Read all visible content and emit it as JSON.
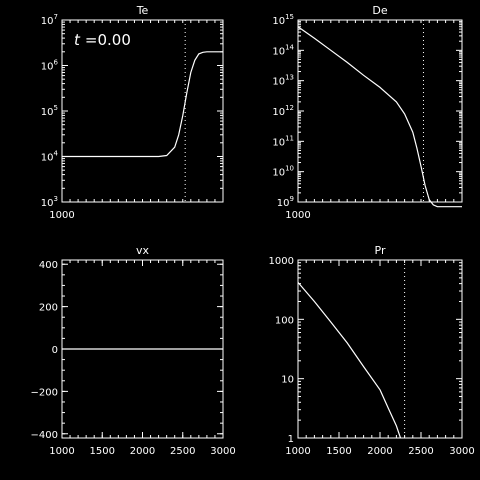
{
  "chart_data": [
    {
      "type": "line",
      "title": "Te",
      "annotation_var": "t",
      "annotation_val": "=0.00",
      "xlim": [
        1000,
        3000
      ],
      "x_tick_labels": [
        {
          "v": 1000,
          "t": "1000"
        }
      ],
      "ylog": true,
      "ylim": [
        1000,
        10000000
      ],
      "y_tick_labels": [
        {
          "v": 1000,
          "b": "10",
          "e": "3"
        },
        {
          "v": 10000,
          "b": "10",
          "e": "4"
        },
        {
          "v": 100000,
          "b": "10",
          "e": "5"
        },
        {
          "v": 1000000,
          "b": "10",
          "e": "6"
        },
        {
          "v": 10000000,
          "b": "10",
          "e": "7"
        }
      ],
      "vline": 2530,
      "series": [
        {
          "x": [
            1000,
            1500,
            2000,
            2200,
            2300,
            2400,
            2450,
            2500,
            2550,
            2600,
            2650,
            2700,
            2750,
            2800,
            2900,
            3000
          ],
          "y": [
            10000,
            10000,
            10000,
            10000,
            10500,
            16000,
            30000,
            80000,
            250000,
            700000,
            1300000,
            1800000,
            1950000,
            2000000,
            2000000,
            2000000
          ]
        }
      ]
    },
    {
      "type": "line",
      "title": "De",
      "xlim": [
        1000,
        3000
      ],
      "x_tick_labels": [
        {
          "v": 1000,
          "t": "1000"
        }
      ],
      "ylog": true,
      "ylim": [
        1000000000,
        1000000000000000
      ],
      "y_tick_labels": [
        {
          "v": 1000000000,
          "b": "10",
          "e": "9"
        },
        {
          "v": 10000000000,
          "b": "10",
          "e": "10"
        },
        {
          "v": 100000000000,
          "b": "10",
          "e": "11"
        },
        {
          "v": 1000000000000,
          "b": "10",
          "e": "12"
        },
        {
          "v": 10000000000000,
          "b": "10",
          "e": "13"
        },
        {
          "v": 100000000000000,
          "b": "10",
          "e": "14"
        },
        {
          "v": 1000000000000000,
          "b": "10",
          "e": "15"
        }
      ],
      "vline": 2530,
      "series": [
        {
          "x": [
            1000,
            1200,
            1400,
            1600,
            1800,
            2000,
            2200,
            2300,
            2400,
            2450,
            2500,
            2550,
            2600,
            2650,
            2700,
            2750,
            2800,
            2900,
            3000
          ],
          "y": [
            600000000000000,
            250000000000000,
            100000000000000,
            40000000000000,
            15000000000000,
            6000000000000,
            2000000000000,
            800000000000,
            200000000000,
            60000000000,
            15000000000,
            3500000000,
            1200000000,
            800000000,
            700000000,
            700000000,
            700000000,
            700000000,
            700000000
          ]
        }
      ]
    },
    {
      "type": "line",
      "title": "vx",
      "xlim": [
        1000,
        3000
      ],
      "x_tick_labels": [
        {
          "v": 1000,
          "t": "1000"
        },
        {
          "v": 1500,
          "t": "1500"
        },
        {
          "v": 2000,
          "t": "2000"
        },
        {
          "v": 2500,
          "t": "2500"
        },
        {
          "v": 3000,
          "t": "3000"
        }
      ],
      "ylog": false,
      "ylim": [
        -420,
        420
      ],
      "y_tick_labels": [
        {
          "v": -400,
          "t": "−400"
        },
        {
          "v": -200,
          "t": "−200"
        },
        {
          "v": 0,
          "t": "0"
        },
        {
          "v": 200,
          "t": "200"
        },
        {
          "v": 400,
          "t": "400"
        }
      ],
      "series": [
        {
          "x": [
            1000,
            3000
          ],
          "y": [
            0,
            0
          ]
        }
      ]
    },
    {
      "type": "line",
      "title": "Pr",
      "xlim": [
        1000,
        3000
      ],
      "x_tick_labels": [
        {
          "v": 1000,
          "t": "1000"
        },
        {
          "v": 1500,
          "t": "1500"
        },
        {
          "v": 2000,
          "t": "2000"
        },
        {
          "v": 2500,
          "t": "2500"
        },
        {
          "v": 3000,
          "t": "3000"
        }
      ],
      "ylog": true,
      "ylim": [
        1,
        1000
      ],
      "y_tick_labels": [
        {
          "v": 1,
          "t": "1"
        },
        {
          "v": 10,
          "t": "10"
        },
        {
          "v": 100,
          "t": "100"
        },
        {
          "v": 1000,
          "t": "1000"
        }
      ],
      "vline": 2300,
      "series": [
        {
          "x": [
            1000,
            1200,
            1400,
            1600,
            1800,
            2000,
            2100,
            2200,
            2250
          ],
          "y": [
            420,
            200,
            90,
            40,
            16,
            6.5,
            3.2,
            1.6,
            1.0
          ]
        }
      ]
    }
  ]
}
